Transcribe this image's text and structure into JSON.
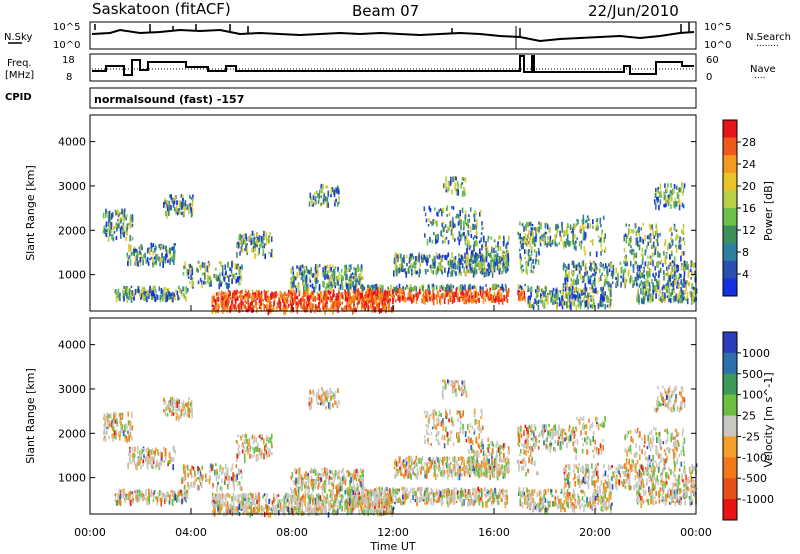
{
  "header": {
    "station": "Saskatoon (fitACF)",
    "beam": "Beam 07",
    "date": "22/Jun/2010"
  },
  "strip_labels": {
    "nsky": "N.Sky",
    "nsky_top": "10^5",
    "nsky_bot": "10^0",
    "nsearch": "N.Search",
    "nsearch_dots": "........",
    "nsearch_top": "10^5",
    "nsearch_bot": "10^0",
    "freq": "Freq.",
    "freq_unit": "[MHz]",
    "freq_top": "18",
    "freq_bot": "8",
    "nave": "Nave",
    "nave_dots": "....",
    "nave_top": "60",
    "nave_bot": "0",
    "cpid": "CPID",
    "mode": "normalsound (fast) -157"
  },
  "chart_data": [
    {
      "type": "heatmap",
      "panel": "power",
      "ylabel": "Slant Range [km]",
      "ylim": [
        180,
        4600
      ],
      "yticks": [
        1000,
        2000,
        3000,
        4000
      ],
      "colorbar_label": "Power [dB]",
      "colorbar_ticks": [
        "28",
        "24",
        "20",
        "16",
        "12",
        "8",
        "4"
      ],
      "colorbar_colors": [
        "#e8141c",
        "#f05a18",
        "#f39a20",
        "#e8c32a",
        "#b8d048",
        "#6cbf4a",
        "#3f8f5a",
        "#2f7f9f",
        "#2a4fb0",
        "#1430e0"
      ]
    },
    {
      "type": "heatmap",
      "panel": "velocity",
      "ylabel": "Slant Range [km]",
      "xlabel": "Time UT",
      "ylim": [
        180,
        4600
      ],
      "yticks": [
        1000,
        2000,
        3000,
        4000
      ],
      "xticks": [
        "00:00",
        "04:00",
        "08:00",
        "12:00",
        "16:00",
        "20:00",
        "00:00"
      ],
      "colorbar_label": "Velocity [m s^-1]",
      "colorbar_ticks": [
        "1000",
        "500",
        "100",
        "25",
        "-25",
        "-100",
        "-500",
        "-1000"
      ],
      "colorbar_colors": [
        "#2a3fb8",
        "#2f6fae",
        "#3f9a5a",
        "#6cc040",
        "#c8c8c0",
        "#f3a02a",
        "#f07a1a",
        "#e8501a",
        "#e81414"
      ]
    }
  ]
}
